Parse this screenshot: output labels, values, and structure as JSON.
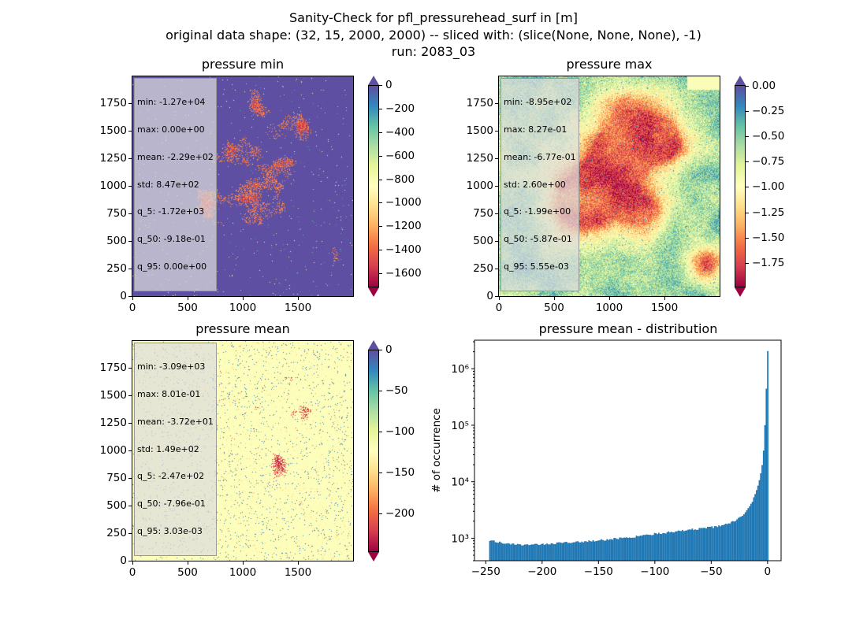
{
  "title": {
    "line1": "Sanity-Check for pfl_pressurehead_surf in [m]",
    "line2": "original data shape: (32, 15, 2000, 2000) -- sliced with: (slice(None, None, None), -1)",
    "line3": "run: 2083_03"
  },
  "panels": [
    {
      "id": "min",
      "title": "pressure min",
      "stats": [
        "min: -1.27e+04",
        "max: 0.00e+00",
        "mean: -2.29e+02",
        "std: 8.47e+02",
        "q_5: -1.72e+03",
        "q_50: -9.18e-01",
        "q_95: 0.00e+00"
      ],
      "x_ticks": [
        "0",
        "500",
        "1000",
        "1500"
      ],
      "y_ticks": [
        "0",
        "250",
        "500",
        "750",
        "1000",
        "1250",
        "1500",
        "1750"
      ],
      "cbar_ticks": [
        "0",
        "−200",
        "−400",
        "−600",
        "−800",
        "−1000",
        "−1200",
        "−1400",
        "−1600"
      ],
      "cbar_range": [
        -1720,
        0
      ],
      "cbar_extend": "both",
      "bg_color": "#5e4fa2"
    },
    {
      "id": "max",
      "title": "pressure max",
      "stats": [
        "min: -8.95e+02",
        "max: 8.27e-01",
        "mean: -6.77e-01",
        "std: 2.60e+00",
        "q_5: -1.99e+00",
        "q_50: -5.87e-01",
        "q_95: 5.55e-03"
      ],
      "x_ticks": [
        "0",
        "500",
        "1000",
        "1500"
      ],
      "y_ticks": [
        "0",
        "250",
        "500",
        "750",
        "1000",
        "1250",
        "1500",
        "1750"
      ],
      "cbar_ticks": [
        "0.00",
        "−0.25",
        "−0.50",
        "−0.75",
        "−1.00",
        "−1.25",
        "−1.50",
        "−1.75"
      ],
      "cbar_range": [
        -1.99,
        0.0055
      ],
      "cbar_extend": "both",
      "bg_color": "#fdbf6f"
    },
    {
      "id": "mean",
      "title": "pressure mean",
      "stats": [
        "min: -3.09e+03",
        "max: 8.01e-01",
        "mean: -3.72e+01",
        "std: 1.49e+02",
        "q_5: -2.47e+02",
        "q_50: -7.96e-01",
        "q_95: 3.03e-03"
      ],
      "x_ticks": [
        "0",
        "500",
        "1000",
        "1500"
      ],
      "y_ticks": [
        "0",
        "250",
        "500",
        "750",
        "1000",
        "1250",
        "1500",
        "1750"
      ],
      "cbar_ticks": [
        "0",
        "−50",
        "−100",
        "−150",
        "−200"
      ],
      "cbar_range": [
        -247,
        0.003
      ],
      "cbar_extend": "both",
      "bg_color": "#fdf5b0"
    }
  ],
  "colormap": "Spectral",
  "colormap_stops": [
    "#9e0142",
    "#d53e4f",
    "#f46d43",
    "#fdae61",
    "#fee08b",
    "#ffffbf",
    "#e6f598",
    "#abdda4",
    "#66c2a5",
    "#3288bd",
    "#5e4fa2"
  ],
  "chart_data": {
    "type": "bar",
    "title": "pressure mean - distribution",
    "xlabel": "",
    "ylabel": "# of occurrence",
    "x_ticks": [
      "−250",
      "−200",
      "−150",
      "−100",
      "−50",
      "0"
    ],
    "xlim": [
      -260,
      12
    ],
    "ylim": [
      400,
      3200000
    ],
    "yscale": "log",
    "y_ticks": [
      "10³",
      "10⁴",
      "10⁵",
      "10⁶"
    ],
    "bar_color": "#1f77b4",
    "bin_range": [
      -247,
      0.8
    ],
    "points": [
      [
        -245,
        900
      ],
      [
        -230,
        790
      ],
      [
        -210,
        760
      ],
      [
        -200,
        780
      ],
      [
        -180,
        830
      ],
      [
        -160,
        880
      ],
      [
        -140,
        960
      ],
      [
        -120,
        1050
      ],
      [
        -100,
        1200
      ],
      [
        -80,
        1330
      ],
      [
        -60,
        1480
      ],
      [
        -45,
        1600
      ],
      [
        -35,
        1800
      ],
      [
        -28,
        2100
      ],
      [
        -22,
        2600
      ],
      [
        -18,
        3200
      ],
      [
        -14,
        4300
      ],
      [
        -11,
        6000
      ],
      [
        -8,
        9000
      ],
      [
        -6,
        14000
      ],
      [
        -4,
        25000
      ],
      [
        -3,
        50000
      ],
      [
        -2,
        130000
      ],
      [
        -1.2,
        360000
      ],
      [
        -0.6,
        800000
      ],
      [
        -0.2,
        2100000
      ]
    ]
  }
}
